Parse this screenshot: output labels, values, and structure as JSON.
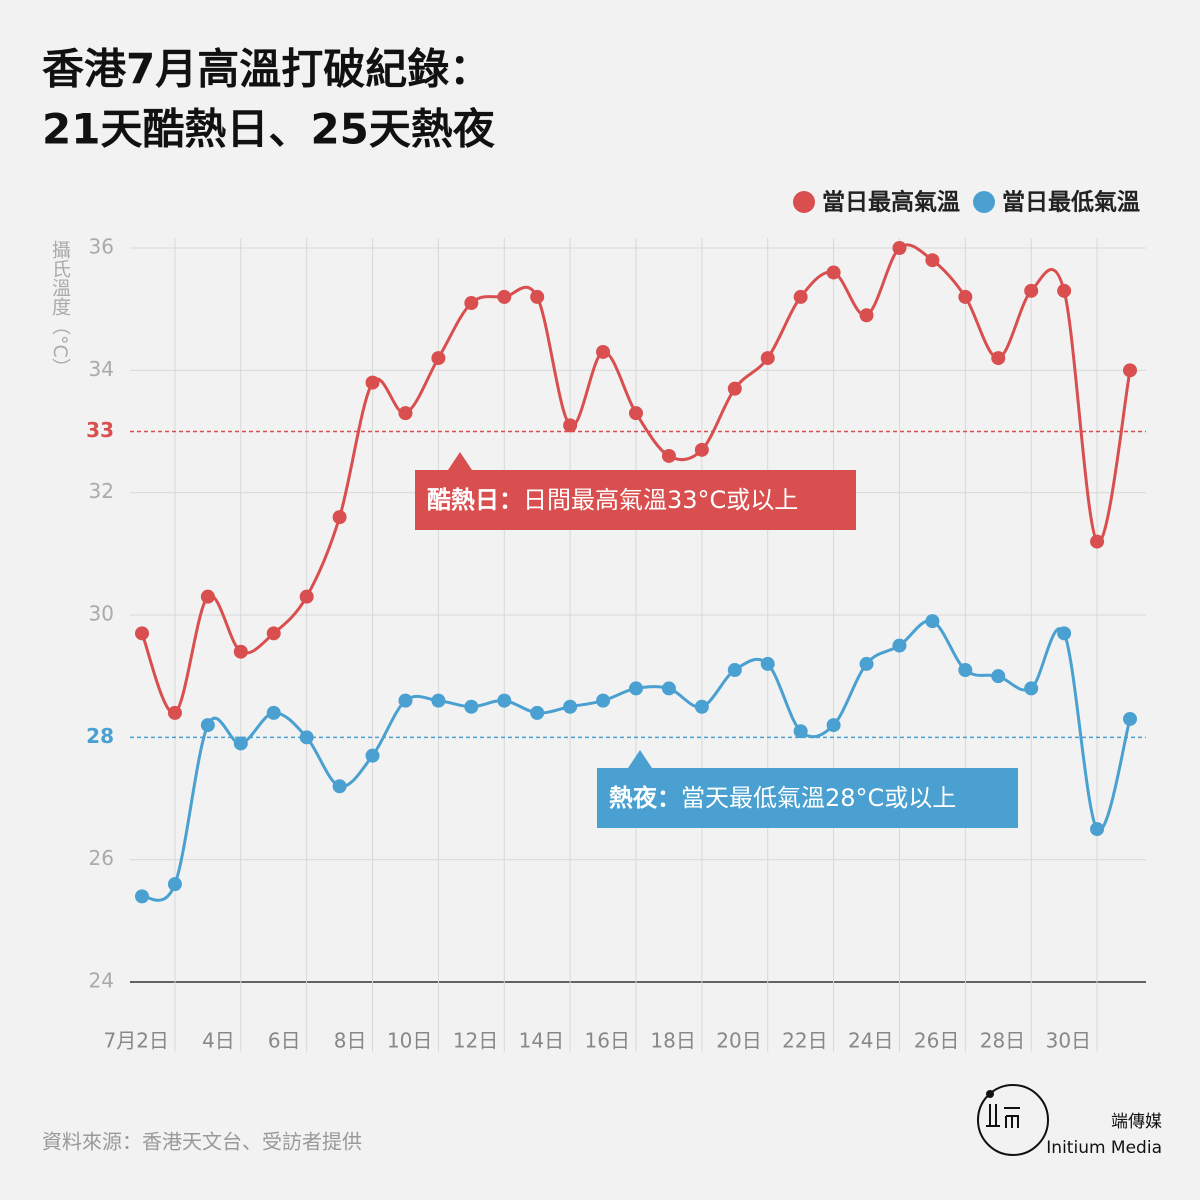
{
  "chart_data": {
    "type": "line",
    "title_lines": [
      "香港7月高溫打破紀錄：",
      "21天酷熱日、25天熱夜"
    ],
    "ylabel": "攝氏溫度（°C）",
    "categories": [
      null,
      "7月2日",
      null,
      "4日",
      null,
      "6日",
      null,
      "8日",
      null,
      "10日",
      null,
      "12日",
      null,
      "14日",
      null,
      "16日",
      null,
      "18日",
      null,
      "20日",
      null,
      "22日",
      null,
      "24日",
      null,
      "26日",
      null,
      "28日",
      null,
      "30日",
      null
    ],
    "series": [
      {
        "name": "當日最高氣溫",
        "color": "#d94f4f",
        "values": [
          29.7,
          28.4,
          30.3,
          29.4,
          29.7,
          30.3,
          31.6,
          33.8,
          33.3,
          34.2,
          35.1,
          35.2,
          35.2,
          33.1,
          34.3,
          33.3,
          32.6,
          32.7,
          33.7,
          34.2,
          35.2,
          35.6,
          34.9,
          36.0,
          35.8,
          35.2,
          34.2,
          35.3,
          35.3,
          31.2,
          34.0
        ]
      },
      {
        "name": "當日最低氣溫",
        "color": "#4aa0d0",
        "values": [
          25.4,
          25.6,
          28.2,
          27.9,
          28.4,
          28.0,
          27.2,
          27.7,
          28.6,
          28.6,
          28.5,
          28.6,
          28.4,
          28.5,
          28.6,
          28.8,
          28.8,
          28.5,
          29.1,
          29.2,
          28.1,
          28.2,
          29.2,
          29.5,
          29.9,
          29.1,
          29.0,
          28.8,
          29.7,
          26.5,
          28.3
        ]
      }
    ],
    "ylim": [
      24,
      36
    ],
    "yticks": [
      24,
      26,
      30,
      32,
      34,
      36
    ],
    "grid": true,
    "legend": "top-right",
    "thresholds": [
      {
        "value": 33,
        "color": "#d94f4f",
        "note_bold": "酷熱日：",
        "note": "日間最高氣溫33°C或以上"
      },
      {
        "value": 28,
        "color": "#4aa0d0",
        "note_bold": "熱夜：",
        "note": "當天最低氣溫28°C或以上"
      }
    ],
    "source": "資料來源：香港天文台、受訪者提供",
    "brand_cn": "端傳媒",
    "brand_en": "Initium Media"
  }
}
